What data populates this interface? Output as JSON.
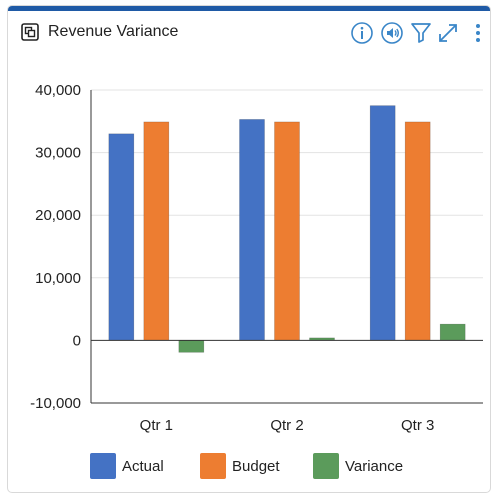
{
  "header": {
    "title": "Revenue Variance",
    "icons": [
      "copy-icon",
      "info-icon",
      "speaker-icon",
      "filter-icon",
      "expand-icon",
      "more-icon"
    ]
  },
  "colors": {
    "accent": "#1f5aa6",
    "icon": "#3a86c8",
    "actual": "#4472c4",
    "budget": "#ed7d31",
    "variance": "#5b9b5b"
  },
  "chart_data": {
    "type": "bar",
    "categories": [
      "Qtr 1",
      "Qtr 2",
      "Qtr 3"
    ],
    "series": [
      {
        "name": "Actual",
        "values": [
          33000,
          35300,
          37500
        ]
      },
      {
        "name": "Budget",
        "values": [
          34900,
          34900,
          34900
        ]
      },
      {
        "name": "Variance",
        "values": [
          -1900,
          400,
          2600
        ]
      }
    ],
    "yticks": [
      "40,000",
      "30,000",
      "20,000",
      "10,000",
      "0",
      "-10,000"
    ],
    "ylim": [
      -10000,
      40000
    ],
    "grid": true,
    "legend": "bottom"
  }
}
